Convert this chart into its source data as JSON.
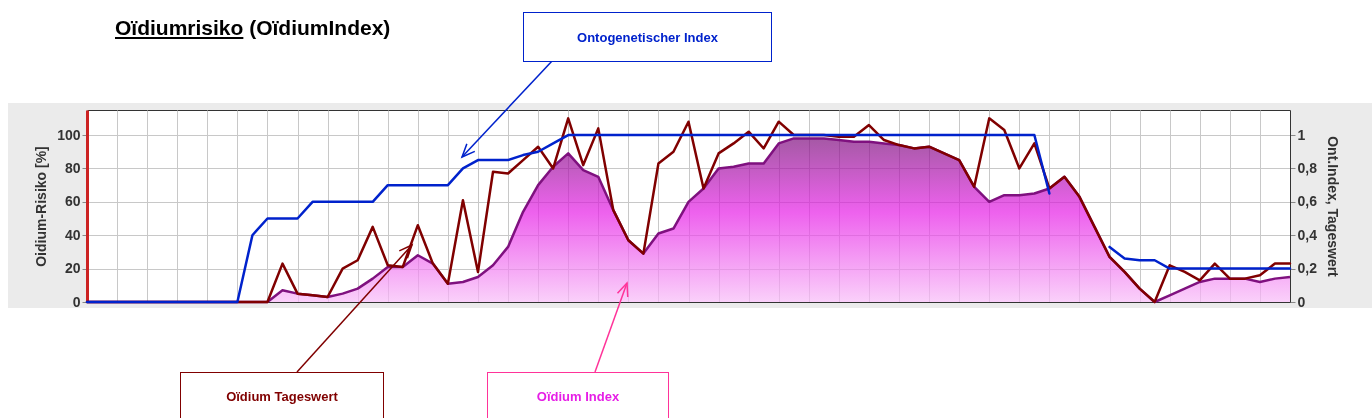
{
  "chart_data": {
    "type": "line",
    "title": "Oïdiumrisiko (OïdiumIndex)",
    "ylabel": "Oidium-Risiko [%]",
    "y2label": "Ont.Index, Tageswert",
    "categories": [
      null,
      null,
      null,
      null,
      null,
      null,
      null,
      null,
      null,
      null,
      null,
      null,
      null,
      null,
      null,
      null,
      null,
      null,
      null,
      null,
      null,
      null,
      null,
      null,
      null,
      null,
      null,
      null,
      null,
      null,
      null,
      null,
      null,
      null,
      null,
      null,
      null,
      null,
      null,
      null,
      null,
      null,
      null,
      null,
      null,
      null,
      null,
      null,
      null,
      null,
      null,
      null,
      null,
      null,
      null,
      null,
      null,
      null,
      null,
      null,
      null,
      null,
      null,
      null,
      null,
      null,
      null,
      null,
      null,
      null,
      null,
      null,
      null,
      null,
      null,
      null,
      null,
      null,
      null,
      null,
      null
    ],
    "series": [
      {
        "name": "Oïdium Index",
        "type": "area",
        "color": "#e61ee6",
        "values": [
          0,
          0,
          0,
          0,
          0,
          0,
          0,
          0,
          0,
          0,
          0,
          0,
          0,
          7,
          5,
          4,
          3,
          5,
          8,
          14,
          21,
          21,
          28,
          23,
          11,
          12,
          15,
          22,
          33,
          54,
          70,
          81,
          89,
          79,
          75,
          55,
          37,
          29,
          41,
          44,
          60,
          68,
          80,
          81,
          83,
          83,
          95,
          98,
          98,
          98,
          97,
          96,
          96,
          95,
          94,
          92,
          93,
          89,
          85,
          69,
          60,
          64,
          64,
          65,
          68,
          75,
          63,
          45,
          27,
          18,
          8,
          0,
          4,
          8,
          12,
          14,
          14,
          14,
          12,
          14,
          15
        ]
      },
      {
        "name": "Oïdium Tageswert",
        "type": "line",
        "axis": "y2",
        "color": "#800000",
        "values": [
          0,
          0,
          0,
          0,
          0,
          0,
          0,
          0,
          0,
          0,
          0,
          0,
          0,
          0.23,
          0.05,
          0.04,
          0.03,
          0.2,
          0.25,
          0.45,
          0.22,
          0.21,
          0.46,
          0.23,
          0.11,
          0.61,
          0.18,
          0.78,
          0.77,
          0.85,
          0.93,
          0.8,
          1.1,
          0.82,
          1.04,
          0.55,
          0.37,
          0.29,
          0.83,
          0.9,
          1.08,
          0.68,
          0.89,
          0.95,
          1.02,
          0.92,
          1.08,
          1.0,
          1.0,
          1.0,
          0.99,
          0.99,
          1.06,
          0.97,
          0.94,
          0.92,
          0.93,
          0.89,
          0.85,
          0.69,
          1.1,
          1.03,
          0.8,
          0.95,
          0.68,
          0.75,
          0.63,
          0.45,
          0.27,
          0.18,
          0.08,
          0,
          0.22,
          0.18,
          0.13,
          0.23,
          0.14,
          0.14,
          0.16,
          0.23,
          0.23
        ]
      },
      {
        "name": "Ontogenetischer Index",
        "type": "line",
        "axis": "y2",
        "color": "#0022cc",
        "values": [
          0,
          0,
          0,
          0,
          0,
          0,
          0,
          0,
          0,
          0,
          0,
          0.4,
          0.5,
          0.5,
          0.5,
          0.6,
          0.6,
          0.6,
          0.6,
          0.6,
          0.7,
          0.7,
          0.7,
          0.7,
          0.7,
          0.8,
          0.85,
          0.85,
          0.85,
          0.88,
          0.9,
          0.95,
          1,
          1,
          1,
          1,
          1,
          1,
          1,
          1,
          1,
          1,
          1,
          1,
          1,
          1,
          1,
          1,
          1,
          1,
          1,
          1,
          1,
          1,
          1,
          1,
          1,
          1,
          1,
          1,
          1,
          1,
          1,
          1,
          0.65,
          null,
          null,
          null,
          0.33,
          0.26,
          0.25,
          0.25,
          0.2,
          0.2,
          0.2,
          0.2,
          0.2,
          0.2,
          0.2,
          0.2,
          0.2
        ]
      }
    ],
    "ylim": [
      0,
      115
    ],
    "yticks": [
      0,
      20,
      40,
      60,
      80,
      100
    ],
    "y2lim": [
      0,
      1.15
    ],
    "y2ticks": [
      0,
      {
        "value": 0.2,
        "label": "0,2"
      },
      {
        "value": 0.4,
        "label": "0,4"
      },
      {
        "value": 0.6,
        "label": "0,6"
      },
      {
        "value": 0.8,
        "label": "0,8"
      },
      1
    ],
    "grid": true,
    "marker": "none",
    "line_style": "solid"
  }
}
